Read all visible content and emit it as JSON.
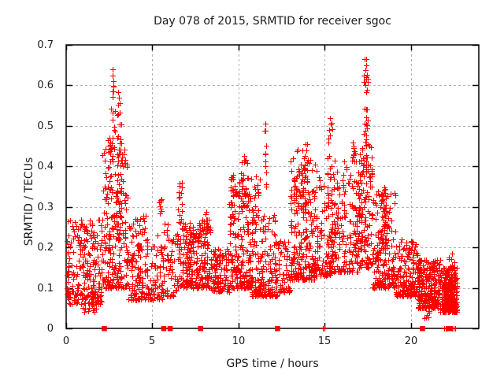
{
  "title": "Day 078 of 2015, SRMTID for receiver sgoc",
  "chart_data": {
    "type": "scatter",
    "title": "Day 078 of 2015, SRMTID for receiver sgoc",
    "xlabel": "GPS time / hours",
    "ylabel": "SRMTID / TECUs",
    "xlim": [
      0,
      23.93
    ],
    "ylim": [
      0,
      0.7
    ],
    "xticks": {
      "values": [
        0,
        5,
        10,
        15,
        20
      ],
      "labels": [
        "0",
        "5",
        "10",
        "15",
        "20"
      ]
    },
    "yticks": {
      "values": [
        0,
        0.1,
        0.2,
        0.3,
        0.4,
        0.5,
        0.6,
        0.7
      ],
      "labels": [
        "0",
        "0.1",
        "0.2",
        "0.3",
        "0.4",
        "0.5",
        "0.6",
        "0.7"
      ]
    },
    "grid": "dashed",
    "legend": "none",
    "marker": "plus",
    "colors": {
      "points": "#ff0000",
      "axis": "#000000",
      "grid": "#b3b3b3",
      "text": "#1a1a1a"
    },
    "cluster_fields": [
      "x_start_hours",
      "x_end_hours",
      "n_points",
      "y_min_tecu",
      "y_max_tecu",
      "density_power_toward_min"
    ],
    "clusters": [
      [
        0.02,
        2.1,
        240,
        0.06,
        0.27,
        1.5
      ],
      [
        0.9,
        1.9,
        22,
        0.04,
        0.09,
        1.2
      ],
      [
        2.1,
        3.6,
        190,
        0.1,
        0.45,
        2.0
      ],
      [
        2.35,
        3.3,
        80,
        0.22,
        0.5,
        1.6
      ],
      [
        2.6,
        2.85,
        12,
        0.44,
        0.6,
        1.1
      ],
      [
        2.95,
        3.2,
        10,
        0.42,
        0.56,
        1.1
      ],
      [
        3.6,
        4.6,
        120,
        0.07,
        0.28,
        1.8
      ],
      [
        4.6,
        5.6,
        75,
        0.07,
        0.23,
        1.7
      ],
      [
        5.4,
        5.6,
        8,
        0.28,
        0.325,
        1.0
      ],
      [
        5.6,
        6.4,
        60,
        0.08,
        0.26,
        1.8
      ],
      [
        6.45,
        6.75,
        12,
        0.28,
        0.36,
        1.2
      ],
      [
        6.4,
        7.3,
        120,
        0.1,
        0.27,
        1.6
      ],
      [
        7.3,
        8.4,
        150,
        0.1,
        0.27,
        1.7
      ],
      [
        8.1,
        8.35,
        10,
        0.2,
        0.29,
        1.1
      ],
      [
        8.4,
        9.45,
        110,
        0.09,
        0.2,
        1.4
      ],
      [
        9.45,
        10.75,
        210,
        0.1,
        0.38,
        2.1
      ],
      [
        10.1,
        10.5,
        26,
        0.3,
        0.425,
        1.3
      ],
      [
        9.5,
        9.75,
        10,
        0.27,
        0.375,
        1.2
      ],
      [
        10.75,
        12.25,
        190,
        0.08,
        0.28,
        1.9
      ],
      [
        10.8,
        11.25,
        22,
        0.24,
        0.375,
        1.3
      ],
      [
        11.5,
        11.62,
        6,
        0.34,
        0.5,
        1.0
      ],
      [
        12.3,
        13.0,
        55,
        0.09,
        0.22,
        1.5
      ],
      [
        13.0,
        14.45,
        240,
        0.12,
        0.42,
        2.0
      ],
      [
        13.3,
        14.05,
        45,
        0.28,
        0.46,
        1.4
      ],
      [
        14.45,
        15.35,
        110,
        0.13,
        0.4,
        1.9
      ],
      [
        15.15,
        15.42,
        12,
        0.36,
        0.52,
        1.1
      ],
      [
        15.35,
        16.95,
        200,
        0.14,
        0.42,
        1.9
      ],
      [
        16.55,
        16.75,
        8,
        0.4,
        0.46,
        1.0
      ],
      [
        16.95,
        17.75,
        140,
        0.15,
        0.47,
        1.7
      ],
      [
        17.28,
        17.52,
        12,
        0.46,
        0.545,
        1.0
      ],
      [
        17.3,
        17.5,
        9,
        0.58,
        0.665,
        1.0
      ],
      [
        17.75,
        19.1,
        190,
        0.1,
        0.35,
        1.9
      ],
      [
        18.2,
        18.7,
        35,
        0.2,
        0.33,
        1.3
      ],
      [
        19.1,
        20.4,
        170,
        0.08,
        0.22,
        1.7
      ],
      [
        20.4,
        21.7,
        260,
        0.05,
        0.17,
        1.6
      ],
      [
        20.8,
        21.1,
        8,
        0.025,
        0.055,
        1.0
      ],
      [
        21.7,
        22.65,
        300,
        0.04,
        0.15,
        1.5
      ],
      [
        22.2,
        22.5,
        9,
        0.15,
        0.19,
        1.0
      ]
    ],
    "notable_points": [
      [
        2.68,
        0.64
      ],
      [
        2.7,
        0.624
      ],
      [
        2.72,
        0.61
      ],
      [
        2.74,
        0.597
      ],
      [
        2.76,
        0.585
      ],
      [
        3.03,
        0.583
      ],
      [
        3.06,
        0.57
      ],
      [
        3.09,
        0.556
      ],
      [
        10.32,
        0.425
      ],
      [
        10.35,
        0.415
      ],
      [
        11.55,
        0.505
      ],
      [
        11.56,
        0.488
      ],
      [
        11.58,
        0.452
      ],
      [
        11.57,
        0.43
      ],
      [
        11.6,
        0.385
      ],
      [
        11.62,
        0.35
      ],
      [
        13.9,
        0.455
      ],
      [
        13.95,
        0.44
      ],
      [
        15.3,
        0.52
      ],
      [
        15.33,
        0.504
      ],
      [
        16.63,
        0.458
      ],
      [
        16.66,
        0.445
      ],
      [
        17.38,
        0.665
      ],
      [
        17.4,
        0.65
      ],
      [
        17.36,
        0.637
      ],
      [
        17.42,
        0.62
      ],
      [
        17.37,
        0.601
      ],
      [
        17.43,
        0.59
      ],
      [
        17.4,
        0.54
      ]
    ],
    "zero_value_squares_x": [
      2.2,
      5.65,
      6.02,
      7.78,
      12.25,
      20.65,
      22.24
    ],
    "zero_value_points_x": [
      14.88,
      14.97,
      21.92,
      22.0,
      22.08,
      22.4,
      22.47,
      22.55
    ]
  }
}
